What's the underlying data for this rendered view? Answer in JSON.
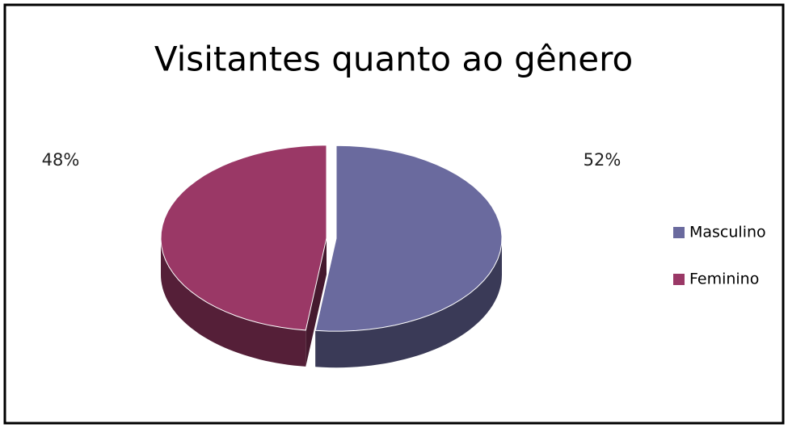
{
  "chart_data": {
    "type": "pie",
    "title": "Visitantes quanto ao gênero",
    "categories": [
      "Masculino",
      "Feminino"
    ],
    "values": [
      52,
      48
    ],
    "value_labels": [
      "52%",
      "48%"
    ],
    "colors": [
      "#6a6a9e",
      "#9a3866"
    ],
    "legend": "right"
  }
}
